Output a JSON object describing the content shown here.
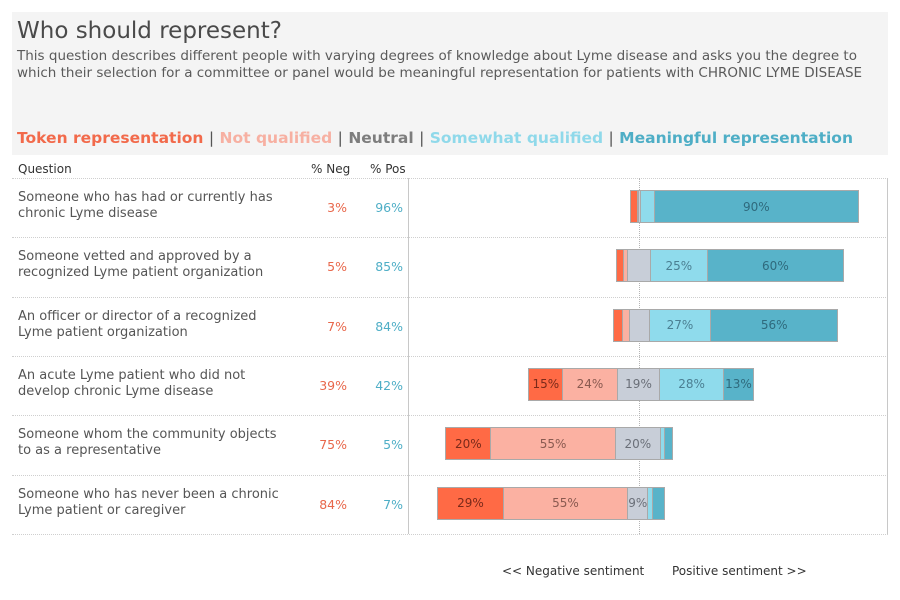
{
  "header": {
    "title": "Who should represent?",
    "description": "This question describes different people with varying degrees of knowledge about Lyme disease and asks you the degree to which their selection for a committee or panel would be meaningful representation for patients with CHRONIC LYME DISEASE"
  },
  "legend": {
    "separator": "|",
    "items": [
      {
        "label": "Token representation",
        "color": "#f26a4b"
      },
      {
        "label": "Not qualified",
        "color": "#f7b0a2"
      },
      {
        "label": "Neutral",
        "color": "#7d7d7d"
      },
      {
        "label": "Somewhat qualified",
        "color": "#8fd9ea"
      },
      {
        "label": "Meaningful representation",
        "color": "#4eaec6"
      }
    ]
  },
  "columns": {
    "question": "Question",
    "neg": "% Neg",
    "pos": "% Pos"
  },
  "footer": {
    "negative": "<< Negative sentiment",
    "positive": "Positive sentiment >>"
  },
  "chart_data": {
    "type": "bar",
    "subtype": "diverging-stacked",
    "title": "Who should represent?",
    "categories": [
      "Someone who has had or currently has chronic Lyme disease",
      "Someone vetted and approved by a recognized Lyme patient organization",
      "An officer or director of a recognized Lyme patient organization",
      "An acute Lyme patient who did not develop chronic Lyme disease",
      "Someone whom the community objects to as a representative",
      "Someone who has never been a chronic Lyme patient or caregiver"
    ],
    "neg_pct": [
      "3%",
      "5%",
      "7%",
      "39%",
      "75%",
      "84%"
    ],
    "pos_pct": [
      "96%",
      "85%",
      "84%",
      "42%",
      "5%",
      "7%"
    ],
    "series": [
      {
        "name": "Token representation",
        "color": "#ff6a45",
        "values": [
          3,
          3,
          4,
          15,
          20,
          29
        ],
        "labels": [
          "",
          "",
          "",
          "15%",
          "20%",
          "29%"
        ]
      },
      {
        "name": "Not qualified",
        "color": "#fbb1a2",
        "values": [
          0.5,
          2,
          3,
          24,
          55,
          55
        ],
        "labels": [
          "",
          "",
          "",
          "24%",
          "55%",
          "55%"
        ]
      },
      {
        "name": "Neutral",
        "color": "#c8ced8",
        "values": [
          1,
          10,
          9,
          19,
          20,
          9
        ],
        "labels": [
          "",
          "",
          "",
          "19%",
          "20%",
          "9%"
        ]
      },
      {
        "name": "Somewhat qualified",
        "color": "#8fdbec",
        "values": [
          6,
          25,
          27,
          28,
          2,
          2
        ],
        "labels": [
          "",
          "25%",
          "27%",
          "28%",
          "",
          ""
        ]
      },
      {
        "name": "Meaningful representation",
        "color": "#58b3c9",
        "values": [
          90,
          60,
          56,
          13,
          3,
          5
        ],
        "labels": [
          "90%",
          "60%",
          "56%",
          "13%",
          "",
          ""
        ]
      }
    ],
    "xlabel": "",
    "ylabel": "",
    "grid": true,
    "legend_position": "top"
  }
}
